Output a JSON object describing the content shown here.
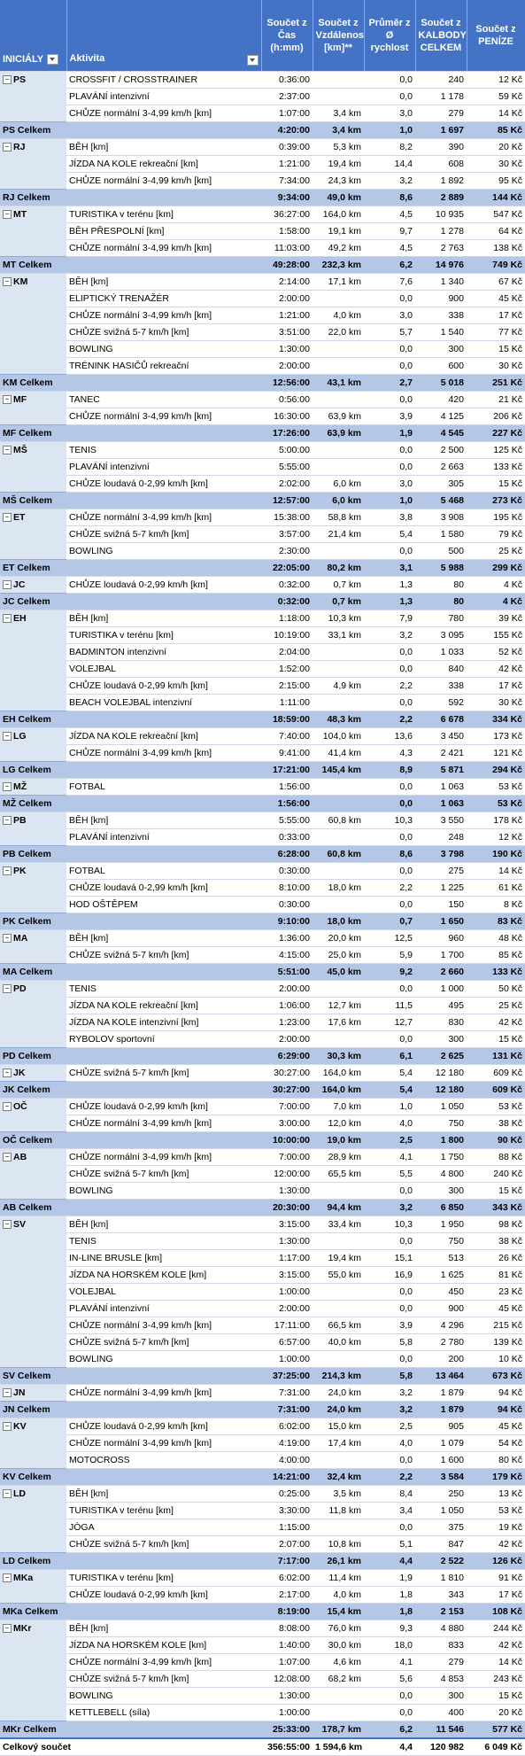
{
  "header": {
    "initials": "INICIÁLY",
    "activity": "Aktivita",
    "time": "Součet z Čas (h:mm)",
    "distance": "Součet z Vzdálenost [km]**",
    "speed": "Průměr z Ø rychlost",
    "points": "Součet z KALBODY CELKEM",
    "money": "Součet z PENÍZE"
  },
  "groups": [
    {
      "initials": "PS",
      "rows": [
        [
          "CROSSFIT / CROSSTRAINER",
          "0:36:00",
          "",
          "0,0",
          "240",
          "12 Kč"
        ],
        [
          "PLAVÁNÍ intenzivní",
          "2:37:00",
          "",
          "0,0",
          "1 178",
          "59 Kč"
        ],
        [
          "CHŮZE normální 3-4,99 km/h [km]",
          "1:07:00",
          "3,4 km",
          "3,0",
          "279",
          "14 Kč"
        ]
      ],
      "total": [
        "PS Celkem",
        "4:20:00",
        "3,4 km",
        "1,0",
        "1 697",
        "85 Kč"
      ]
    },
    {
      "initials": "RJ",
      "rows": [
        [
          "BĚH [km]",
          "0:39:00",
          "5,3 km",
          "8,2",
          "390",
          "20 Kč"
        ],
        [
          "JÍZDA NA KOLE rekreační [km]",
          "1:21:00",
          "19,4 km",
          "14,4",
          "608",
          "30 Kč"
        ],
        [
          "CHŮZE normální 3-4,99 km/h [km]",
          "7:34:00",
          "24,3 km",
          "3,2",
          "1 892",
          "95 Kč"
        ]
      ],
      "total": [
        "RJ Celkem",
        "9:34:00",
        "49,0 km",
        "8,6",
        "2 889",
        "144 Kč"
      ]
    },
    {
      "initials": "MT",
      "rows": [
        [
          "TURISTIKA v terénu [km]",
          "36:27:00",
          "164,0 km",
          "4,5",
          "10 935",
          "547 Kč"
        ],
        [
          "BĚH PŘESPOLNÍ [km]",
          "1:58:00",
          "19,1 km",
          "9,7",
          "1 278",
          "64 Kč"
        ],
        [
          "CHŮZE normální 3-4,99 km/h [km]",
          "11:03:00",
          "49,2 km",
          "4,5",
          "2 763",
          "138 Kč"
        ]
      ],
      "total": [
        "MT Celkem",
        "49:28:00",
        "232,3 km",
        "6,2",
        "14 976",
        "749 Kč"
      ]
    },
    {
      "initials": "KM",
      "rows": [
        [
          "BĚH [km]",
          "2:14:00",
          "17,1 km",
          "7,6",
          "1 340",
          "67 Kč"
        ],
        [
          "ELIPTICKÝ TRENAŽÉR",
          "2:00:00",
          "",
          "0,0",
          "900",
          "45 Kč"
        ],
        [
          "CHŮZE normální 3-4,99 km/h [km]",
          "1:21:00",
          "4,0 km",
          "3,0",
          "338",
          "17 Kč"
        ],
        [
          "CHŮZE svižná 5-7 km/h [km]",
          "3:51:00",
          "22,0 km",
          "5,7",
          "1 540",
          "77 Kč"
        ],
        [
          "BOWLING",
          "1:30:00",
          "",
          "0,0",
          "300",
          "15 Kč"
        ],
        [
          "TRÉNINK HASIČŮ rekreační",
          "2:00:00",
          "",
          "0,0",
          "600",
          "30 Kč"
        ]
      ],
      "total": [
        "KM Celkem",
        "12:56:00",
        "43,1 km",
        "2,7",
        "5 018",
        "251 Kč"
      ]
    },
    {
      "initials": "MF",
      "rows": [
        [
          "TANEC",
          "0:56:00",
          "",
          "0,0",
          "420",
          "21 Kč"
        ],
        [
          "CHŮZE normální 3-4,99 km/h [km]",
          "16:30:00",
          "63,9 km",
          "3,9",
          "4 125",
          "206 Kč"
        ]
      ],
      "total": [
        "MF Celkem",
        "17:26:00",
        "63,9 km",
        "1,9",
        "4 545",
        "227 Kč"
      ]
    },
    {
      "initials": "MŠ",
      "rows": [
        [
          "TENIS",
          "5:00:00",
          "",
          "0,0",
          "2 500",
          "125 Kč"
        ],
        [
          "PLAVÁNÍ intenzivní",
          "5:55:00",
          "",
          "0,0",
          "2 663",
          "133 Kč"
        ],
        [
          "CHŮZE loudavá 0-2,99 km/h [km]",
          "2:02:00",
          "6,0 km",
          "3,0",
          "305",
          "15 Kč"
        ]
      ],
      "total": [
        "MŠ Celkem",
        "12:57:00",
        "6,0 km",
        "1,0",
        "5 468",
        "273 Kč"
      ]
    },
    {
      "initials": "ET",
      "rows": [
        [
          "CHŮZE normální 3-4,99 km/h [km]",
          "15:38:00",
          "58,8 km",
          "3,8",
          "3 908",
          "195 Kč"
        ],
        [
          "CHŮZE svižná 5-7 km/h [km]",
          "3:57:00",
          "21,4 km",
          "5,4",
          "1 580",
          "79 Kč"
        ],
        [
          "BOWLING",
          "2:30:00",
          "",
          "0,0",
          "500",
          "25 Kč"
        ]
      ],
      "total": [
        "ET Celkem",
        "22:05:00",
        "80,2 km",
        "3,1",
        "5 988",
        "299 Kč"
      ]
    },
    {
      "initials": "JC",
      "rows": [
        [
          "CHŮZE loudavá 0-2,99 km/h [km]",
          "0:32:00",
          "0,7 km",
          "1,3",
          "80",
          "4 Kč"
        ]
      ],
      "total": [
        "JC Celkem",
        "0:32:00",
        "0,7 km",
        "1,3",
        "80",
        "4 Kč"
      ]
    },
    {
      "initials": "EH",
      "rows": [
        [
          "BĚH [km]",
          "1:18:00",
          "10,3 km",
          "7,9",
          "780",
          "39 Kč"
        ],
        [
          "TURISTIKA v terénu [km]",
          "10:19:00",
          "33,1 km",
          "3,2",
          "3 095",
          "155 Kč"
        ],
        [
          "BADMINTON intenzivní",
          "2:04:00",
          "",
          "0,0",
          "1 033",
          "52 Kč"
        ],
        [
          "VOLEJBAL",
          "1:52:00",
          "",
          "0,0",
          "840",
          "42 Kč"
        ],
        [
          "CHŮZE loudavá 0-2,99 km/h [km]",
          "2:15:00",
          "4,9 km",
          "2,2",
          "338",
          "17 Kč"
        ],
        [
          "BEACH VOLEJBAL intenzivní",
          "1:11:00",
          "",
          "0,0",
          "592",
          "30 Kč"
        ]
      ],
      "total": [
        "EH Celkem",
        "18:59:00",
        "48,3 km",
        "2,2",
        "6 678",
        "334 Kč"
      ]
    },
    {
      "initials": "LG",
      "rows": [
        [
          "JÍZDA NA KOLE rekreační [km]",
          "7:40:00",
          "104,0 km",
          "13,6",
          "3 450",
          "173 Kč"
        ],
        [
          "CHŮZE normální 3-4,99 km/h [km]",
          "9:41:00",
          "41,4 km",
          "4,3",
          "2 421",
          "121 Kč"
        ]
      ],
      "total": [
        "LG Celkem",
        "17:21:00",
        "145,4 km",
        "8,9",
        "5 871",
        "294 Kč"
      ]
    },
    {
      "initials": "MŽ",
      "rows": [
        [
          "FOTBAL",
          "1:56:00",
          "",
          "0,0",
          "1 063",
          "53 Kč"
        ]
      ],
      "total": [
        "MŽ Celkem",
        "1:56:00",
        "",
        "0,0",
        "1 063",
        "53 Kč"
      ]
    },
    {
      "initials": "PB",
      "rows": [
        [
          "BĚH [km]",
          "5:55:00",
          "60,8 km",
          "10,3",
          "3 550",
          "178 Kč"
        ],
        [
          "PLAVÁNÍ intenzivní",
          "0:33:00",
          "",
          "0,0",
          "248",
          "12 Kč"
        ]
      ],
      "total": [
        "PB Celkem",
        "6:28:00",
        "60,8 km",
        "8,6",
        "3 798",
        "190 Kč"
      ]
    },
    {
      "initials": "PK",
      "rows": [
        [
          "FOTBAL",
          "0:30:00",
          "",
          "0,0",
          "275",
          "14 Kč"
        ],
        [
          "CHŮZE loudavá 0-2,99 km/h [km]",
          "8:10:00",
          "18,0 km",
          "2,2",
          "1 225",
          "61 Kč"
        ],
        [
          "HOD OŠTĚPEM",
          "0:30:00",
          "",
          "0,0",
          "150",
          "8 Kč"
        ]
      ],
      "total": [
        "PK Celkem",
        "9:10:00",
        "18,0 km",
        "0,7",
        "1 650",
        "83 Kč"
      ]
    },
    {
      "initials": "MA",
      "rows": [
        [
          "BĚH [km]",
          "1:36:00",
          "20,0 km",
          "12,5",
          "960",
          "48 Kč"
        ],
        [
          "CHŮZE svižná 5-7 km/h [km]",
          "4:15:00",
          "25,0 km",
          "5,9",
          "1 700",
          "85 Kč"
        ]
      ],
      "total": [
        "MA Celkem",
        "5:51:00",
        "45,0 km",
        "9,2",
        "2 660",
        "133 Kč"
      ]
    },
    {
      "initials": "PD",
      "rows": [
        [
          "TENIS",
          "2:00:00",
          "",
          "0,0",
          "1 000",
          "50 Kč"
        ],
        [
          "JÍZDA NA KOLE rekreační [km]",
          "1:06:00",
          "12,7 km",
          "11,5",
          "495",
          "25 Kč"
        ],
        [
          "JÍZDA NA KOLE intenzivní [km]",
          "1:23:00",
          "17,6 km",
          "12,7",
          "830",
          "42 Kč"
        ],
        [
          "RYBOLOV sportovní",
          "2:00:00",
          "",
          "0,0",
          "300",
          "15 Kč"
        ]
      ],
      "total": [
        "PD Celkem",
        "6:29:00",
        "30,3 km",
        "6,1",
        "2 625",
        "131 Kč"
      ]
    },
    {
      "initials": "JK",
      "rows": [
        [
          "CHŮZE svižná 5-7 km/h [km]",
          "30:27:00",
          "164,0 km",
          "5,4",
          "12 180",
          "609 Kč"
        ]
      ],
      "total": [
        "JK Celkem",
        "30:27:00",
        "164,0 km",
        "5,4",
        "12 180",
        "609 Kč"
      ]
    },
    {
      "initials": "OČ",
      "rows": [
        [
          "CHŮZE loudavá 0-2,99 km/h [km]",
          "7:00:00",
          "7,0 km",
          "1,0",
          "1 050",
          "53 Kč"
        ],
        [
          "CHŮZE normální 3-4,99 km/h [km]",
          "3:00:00",
          "12,0 km",
          "4,0",
          "750",
          "38 Kč"
        ]
      ],
      "total": [
        "OČ Celkem",
        "10:00:00",
        "19,0 km",
        "2,5",
        "1 800",
        "90 Kč"
      ]
    },
    {
      "initials": "AB",
      "rows": [
        [
          "CHŮZE normální 3-4,99 km/h [km]",
          "7:00:00",
          "28,9 km",
          "4,1",
          "1 750",
          "88 Kč"
        ],
        [
          "CHŮZE svižná 5-7 km/h [km]",
          "12:00:00",
          "65,5 km",
          "5,5",
          "4 800",
          "240 Kč"
        ],
        [
          "BOWLING",
          "1:30:00",
          "",
          "0,0",
          "300",
          "15 Kč"
        ]
      ],
      "total": [
        "AB Celkem",
        "20:30:00",
        "94,4 km",
        "3,2",
        "6 850",
        "343 Kč"
      ]
    },
    {
      "initials": "SV",
      "rows": [
        [
          "BĚH [km]",
          "3:15:00",
          "33,4 km",
          "10,3",
          "1 950",
          "98 Kč"
        ],
        [
          "TENIS",
          "1:30:00",
          "",
          "0,0",
          "750",
          "38 Kč"
        ],
        [
          "IN-LINE BRUSLE [km]",
          "1:17:00",
          "19,4 km",
          "15,1",
          "513",
          "26 Kč"
        ],
        [
          "JÍZDA NA HORSKÉM KOLE [km]",
          "3:15:00",
          "55,0 km",
          "16,9",
          "1 625",
          "81 Kč"
        ],
        [
          "VOLEJBAL",
          "1:00:00",
          "",
          "0,0",
          "450",
          "23 Kč"
        ],
        [
          "PLAVÁNÍ intenzivní",
          "2:00:00",
          "",
          "0,0",
          "900",
          "45 Kč"
        ],
        [
          "CHŮZE normální 3-4,99 km/h [km]",
          "17:11:00",
          "66,5 km",
          "3,9",
          "4 296",
          "215 Kč"
        ],
        [
          "CHŮZE svižná 5-7 km/h [km]",
          "6:57:00",
          "40,0 km",
          "5,8",
          "2 780",
          "139 Kč"
        ],
        [
          "BOWLING",
          "1:00:00",
          "",
          "0,0",
          "200",
          "10 Kč"
        ]
      ],
      "total": [
        "SV Celkem",
        "37:25:00",
        "214,3 km",
        "5,8",
        "13 464",
        "673 Kč"
      ]
    },
    {
      "initials": "JN",
      "rows": [
        [
          "CHŮZE normální 3-4,99 km/h [km]",
          "7:31:00",
          "24,0 km",
          "3,2",
          "1 879",
          "94 Kč"
        ]
      ],
      "total": [
        "JN Celkem",
        "7:31:00",
        "24,0 km",
        "3,2",
        "1 879",
        "94 Kč"
      ]
    },
    {
      "initials": "KV",
      "rows": [
        [
          "CHŮZE loudavá 0-2,99 km/h [km]",
          "6:02:00",
          "15,0 km",
          "2,5",
          "905",
          "45 Kč"
        ],
        [
          "CHŮZE normální 3-4,99 km/h [km]",
          "4:19:00",
          "17,4 km",
          "4,0",
          "1 079",
          "54 Kč"
        ],
        [
          "MOTOCROSS",
          "4:00:00",
          "",
          "0,0",
          "1 600",
          "80 Kč"
        ]
      ],
      "total": [
        "KV Celkem",
        "14:21:00",
        "32,4 km",
        "2,2",
        "3 584",
        "179 Kč"
      ]
    },
    {
      "initials": "LD",
      "rows": [
        [
          "BĚH [km]",
          "0:25:00",
          "3,5 km",
          "8,4",
          "250",
          "13 Kč"
        ],
        [
          "TURISTIKA v terénu [km]",
          "3:30:00",
          "11,8 km",
          "3,4",
          "1 050",
          "53 Kč"
        ],
        [
          "JÓGA",
          "1:15:00",
          "",
          "0,0",
          "375",
          "19 Kč"
        ],
        [
          "CHŮZE svižná 5-7 km/h [km]",
          "2:07:00",
          "10,8 km",
          "5,1",
          "847",
          "42 Kč"
        ]
      ],
      "total": [
        "LD Celkem",
        "7:17:00",
        "26,1 km",
        "4,4",
        "2 522",
        "126 Kč"
      ]
    },
    {
      "initials": "MKa",
      "rows": [
        [
          "TURISTIKA v terénu [km]",
          "6:02:00",
          "11,4 km",
          "1,9",
          "1 810",
          "91 Kč"
        ],
        [
          "CHŮZE loudavá 0-2,99 km/h [km]",
          "2:17:00",
          "4,0 km",
          "1,8",
          "343",
          "17 Kč"
        ]
      ],
      "total": [
        "MKa Celkem",
        "8:19:00",
        "15,4 km",
        "1,8",
        "2 153",
        "108 Kč"
      ]
    },
    {
      "initials": "MKr",
      "rows": [
        [
          "BĚH [km]",
          "8:08:00",
          "76,0 km",
          "9,3",
          "4 880",
          "244 Kč"
        ],
        [
          "JÍZDA NA HORSKÉM KOLE [km]",
          "1:40:00",
          "30,0 km",
          "18,0",
          "833",
          "42 Kč"
        ],
        [
          "CHŮZE normální 3-4,99 km/h [km]",
          "1:07:00",
          "4,6 km",
          "4,1",
          "279",
          "14 Kč"
        ],
        [
          "CHŮZE svižná 5-7 km/h [km]",
          "12:08:00",
          "68,2 km",
          "5,6",
          "4 853",
          "243 Kč"
        ],
        [
          "BOWLING",
          "1:30:00",
          "",
          "0,0",
          "300",
          "15 Kč"
        ],
        [
          "KETTLEBELL (síla)",
          "1:00:00",
          "",
          "0,0",
          "400",
          "20 Kč"
        ]
      ],
      "total": [
        "MKr Celkem",
        "25:33:00",
        "178,7 km",
        "6,2",
        "11 546",
        "577 Kč"
      ]
    }
  ],
  "grand_total": [
    "Celkový součet",
    "356:55:00",
    "1 594,6 km",
    "4,4",
    "120 982",
    "6 049 Kč"
  ]
}
